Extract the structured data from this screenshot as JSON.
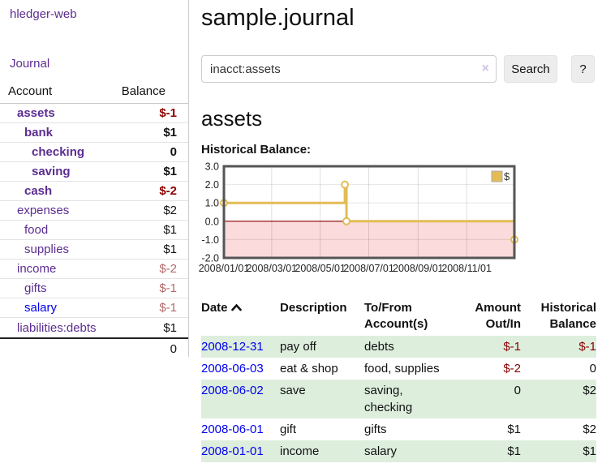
{
  "app": {
    "brand": "hledger-web",
    "nav_journal": "Journal"
  },
  "sidebar": {
    "header": {
      "account": "Account",
      "balance": "Balance"
    },
    "accounts": [
      {
        "name": "assets",
        "indent": 1,
        "bold": true,
        "balance": "$-1",
        "balance_class": "neg-strong",
        "link_color": "purple"
      },
      {
        "name": "bank",
        "indent": 2,
        "bold": true,
        "balance": "$1",
        "balance_class": "",
        "link_color": "purple"
      },
      {
        "name": "checking",
        "indent": 3,
        "bold": true,
        "balance": "0",
        "balance_class": "",
        "link_color": "purple"
      },
      {
        "name": "saving",
        "indent": 3,
        "bold": true,
        "balance": "$1",
        "balance_class": "",
        "link_color": "purple"
      },
      {
        "name": "cash",
        "indent": 2,
        "bold": true,
        "balance": "$-2",
        "balance_class": "neg-strong",
        "link_color": "purple"
      },
      {
        "name": "expenses",
        "indent": 1,
        "bold": false,
        "balance": "$2",
        "balance_class": "",
        "link_color": "purple"
      },
      {
        "name": "food",
        "indent": 2,
        "bold": false,
        "balance": "$1",
        "balance_class": "",
        "link_color": "purple"
      },
      {
        "name": "supplies",
        "indent": 2,
        "bold": false,
        "balance": "$1",
        "balance_class": "",
        "link_color": "purple"
      },
      {
        "name": "income",
        "indent": 1,
        "bold": false,
        "balance": "$-2",
        "balance_class": "neg-muted",
        "link_color": "purple"
      },
      {
        "name": "gifts",
        "indent": 2,
        "bold": false,
        "balance": "$-1",
        "balance_class": "neg-muted",
        "link_color": "purple"
      },
      {
        "name": "salary",
        "indent": 2,
        "bold": false,
        "balance": "$-1",
        "balance_class": "neg-muted",
        "link_color": "blue"
      },
      {
        "name": "liabilities:debts",
        "indent": 1,
        "bold": false,
        "balance": "$1",
        "balance_class": "",
        "link_color": "purple"
      }
    ],
    "total": "0"
  },
  "main": {
    "title": "sample.journal",
    "search": {
      "value": "inacct:assets",
      "clear_icon": "×",
      "button": "Search",
      "help_button": "?"
    },
    "account_heading": "assets",
    "chart_label": "Historical Balance:"
  },
  "chart_data": {
    "type": "line",
    "style": "step-after",
    "title": "Historical Balance of assets",
    "series": [
      {
        "name": "$",
        "color": "#e3bc57",
        "points": [
          [
            "2008-01-01",
            1
          ],
          [
            "2008-06-01",
            2
          ],
          [
            "2008-06-03",
            0
          ],
          [
            "2008-12-31",
            -1
          ]
        ]
      }
    ],
    "x_range": [
      "2008-01-01",
      "2008-12-31"
    ],
    "x_ticks": [
      "2008/01/01",
      "2008/03/01",
      "2008/05/01",
      "2008/07/01",
      "2008/09/01",
      "2008/11/01"
    ],
    "y_ticks": [
      3.0,
      2.0,
      1.0,
      0.0,
      -1.0,
      -2.0
    ],
    "ylim": [
      -2,
      3
    ],
    "grid": true,
    "legend": {
      "position": "top-right",
      "label": "$"
    },
    "negative_region_color": "#fbdbdb",
    "zero_line_color": "#8b0000",
    "border_color": "#555555"
  },
  "register": {
    "headers": [
      {
        "lines": [
          "Date"
        ],
        "align": "left",
        "sort": "asc"
      },
      {
        "lines": [
          "Description"
        ],
        "align": "left"
      },
      {
        "lines": [
          "To/From",
          "Account(s)"
        ],
        "align": "left"
      },
      {
        "lines": [
          "Amount",
          "Out/In"
        ],
        "align": "right"
      },
      {
        "lines": [
          "Historical",
          "Balance"
        ],
        "align": "right"
      }
    ],
    "rows": [
      {
        "date": "2008-12-31",
        "description": "pay off",
        "accounts": "debts",
        "amount": "$-1",
        "amount_neg": true,
        "balance": "$-1",
        "balance_neg": true
      },
      {
        "date": "2008-06-03",
        "description": "eat & shop",
        "accounts": "food, supplies",
        "amount": "$-2",
        "amount_neg": true,
        "balance": "0",
        "balance_neg": false
      },
      {
        "date": "2008-06-02",
        "description": "save",
        "accounts": "saving,\nchecking",
        "amount": "0",
        "amount_neg": false,
        "balance": "$2",
        "balance_neg": false
      },
      {
        "date": "2008-06-01",
        "description": "gift",
        "accounts": "gifts",
        "amount": "$1",
        "amount_neg": false,
        "balance": "$2",
        "balance_neg": false
      },
      {
        "date": "2008-01-01",
        "description": "income",
        "accounts": "salary",
        "amount": "$1",
        "amount_neg": false,
        "balance": "$1",
        "balance_neg": false
      }
    ]
  },
  "colors": {
    "purple_link": "#5c2d91",
    "blue_link": "#0000ee",
    "neg_strong": "#8b0000",
    "neg_muted": "#b56a6a",
    "row_alt_green": "#ddeedd",
    "chart_line": "#e3bc57",
    "chart_negative_bg": "#fbdbdb",
    "zero_line": "#8b0000"
  }
}
